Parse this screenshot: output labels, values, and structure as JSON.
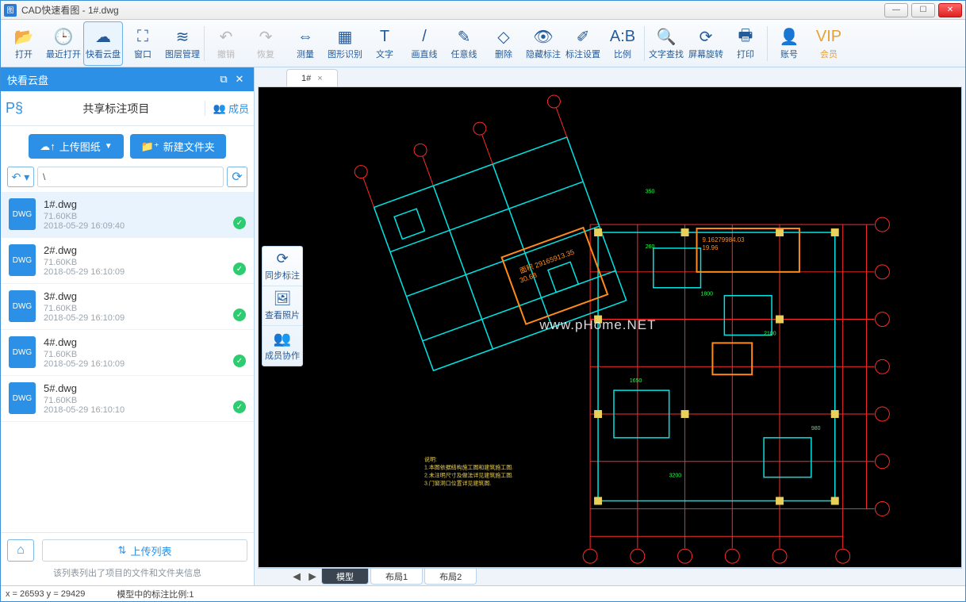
{
  "window": {
    "title": "CAD快速看图 - 1#.dwg"
  },
  "toolbar": [
    {
      "id": "open",
      "label": "打开",
      "icon": "📂"
    },
    {
      "id": "recent",
      "label": "最近打开",
      "icon": "🕒"
    },
    {
      "id": "cloud",
      "label": "快看云盘",
      "icon": "☁",
      "active": true
    },
    {
      "id": "window",
      "label": "窗口",
      "icon": "⛶"
    },
    {
      "id": "layers",
      "label": "图层管理",
      "icon": "≋",
      "sep": true
    },
    {
      "id": "undo",
      "label": "撤销",
      "icon": "↶",
      "disabled": true
    },
    {
      "id": "redo",
      "label": "恢复",
      "icon": "↷",
      "disabled": true
    },
    {
      "id": "measure",
      "label": "测量",
      "icon": "⇔"
    },
    {
      "id": "recognize",
      "label": "图形识别",
      "icon": "▦"
    },
    {
      "id": "text",
      "label": "文字",
      "icon": "T"
    },
    {
      "id": "line",
      "label": "画直线",
      "icon": "/"
    },
    {
      "id": "freeline",
      "label": "任意线",
      "icon": "✎"
    },
    {
      "id": "delete",
      "label": "删除",
      "icon": "◇"
    },
    {
      "id": "hide",
      "label": "隐藏标注",
      "icon": "👁"
    },
    {
      "id": "markset",
      "label": "标注设置",
      "icon": "✐"
    },
    {
      "id": "scale",
      "label": "比例",
      "icon": "A:B",
      "sep": true
    },
    {
      "id": "findtext",
      "label": "文字查找",
      "icon": "🔍"
    },
    {
      "id": "rotate",
      "label": "屏幕旋转",
      "icon": "⟳"
    },
    {
      "id": "print",
      "label": "打印",
      "icon": "🖶",
      "sep": true
    },
    {
      "id": "account",
      "label": "账号",
      "icon": "👤"
    },
    {
      "id": "vip",
      "label": "会员",
      "icon": "VIP",
      "vip": true
    }
  ],
  "sidebar": {
    "panel_title": "快看云盘",
    "share_label": "共享标注项目",
    "members_label": "成员",
    "upload_btn": "上传图纸",
    "newfolder_btn": "新建文件夹",
    "path": "\\",
    "upload_list": "上传列表",
    "footer_text": "该列表列出了项目的文件和文件夹信息",
    "files": [
      {
        "name": "1#.dwg",
        "size": "71.60KB",
        "date": "2018-05-29 16:09:40",
        "selected": true
      },
      {
        "name": "2#.dwg",
        "size": "71.60KB",
        "date": "2018-05-29 16:10:09"
      },
      {
        "name": "3#.dwg",
        "size": "71.60KB",
        "date": "2018-05-29 16:10:09"
      },
      {
        "name": "4#.dwg",
        "size": "71.60KB",
        "date": "2018-05-29 16:10:09"
      },
      {
        "name": "5#.dwg",
        "size": "71.60KB",
        "date": "2018-05-29 16:10:10"
      }
    ]
  },
  "doctab": {
    "label": "1#"
  },
  "floattools": [
    {
      "id": "sync",
      "label": "同步标注",
      "icon": "⟳"
    },
    {
      "id": "photos",
      "label": "查看照片",
      "icon": "🖼"
    },
    {
      "id": "collab",
      "label": "成员协作",
      "icon": "👥"
    }
  ],
  "bottom_tabs": [
    {
      "label": "模型",
      "active": true
    },
    {
      "label": "布局1"
    },
    {
      "label": "布局2"
    }
  ],
  "status": {
    "coords": "x = 26593 y = 29429",
    "scale": "模型中的标注比例:1"
  },
  "watermark": "www.pHome.NET",
  "drawing": {
    "background": "#000000",
    "colors": {
      "cyan": "#00e5e5",
      "red": "#ff2a2a",
      "yellow": "#e8d05a",
      "green": "#29ff4a",
      "grid": "#555555"
    },
    "note_text": "面积 29165913.35\\n  30.68",
    "note_text2": "9.1627998403\\n  19.96"
  }
}
